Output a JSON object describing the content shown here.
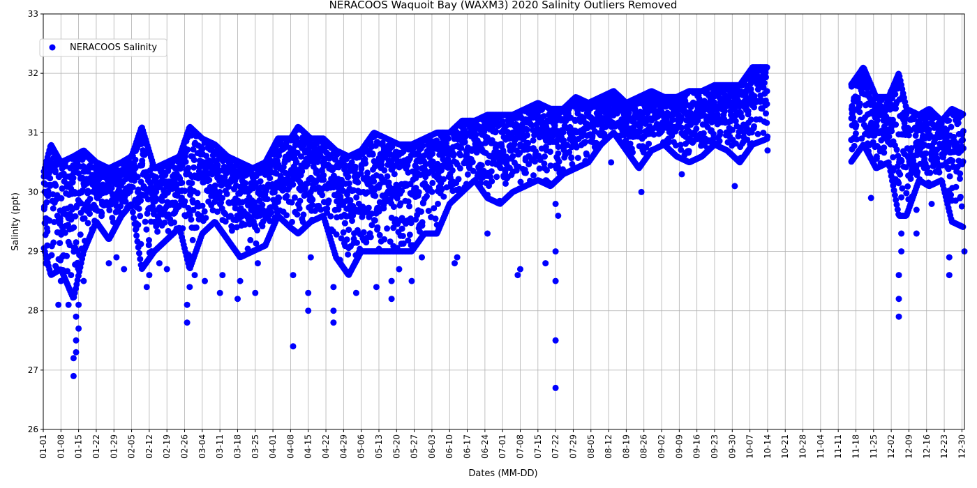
{
  "chart_data": {
    "type": "scatter",
    "title": "NERACOOS Waquoit Bay (WAXM3) 2020 Salinity Outliers Removed",
    "xlabel": "Dates (MM-DD)",
    "ylabel": "Salinity (ppt)",
    "ylim": [
      26,
      33
    ],
    "yticks": [
      "26",
      "27",
      "28",
      "29",
      "30",
      "31",
      "32",
      "33"
    ],
    "xlim": [
      "2020-01-01",
      "2020-12-31"
    ],
    "xticks": [
      "01-01",
      "01-08",
      "01-15",
      "01-22",
      "01-29",
      "02-05",
      "02-12",
      "02-19",
      "02-26",
      "03-04",
      "03-11",
      "03-18",
      "03-25",
      "04-01",
      "04-08",
      "04-15",
      "04-22",
      "04-29",
      "05-06",
      "05-13",
      "05-20",
      "05-27",
      "06-03",
      "06-10",
      "06-17",
      "06-24",
      "07-01",
      "07-08",
      "07-15",
      "07-22",
      "07-29",
      "08-05",
      "08-12",
      "08-19",
      "08-26",
      "09-02",
      "09-09",
      "09-16",
      "09-23",
      "09-30",
      "10-07",
      "10-14",
      "10-21",
      "10-28",
      "11-04",
      "11-11",
      "11-18",
      "11-25",
      "12-02",
      "12-09",
      "12-16",
      "12-23",
      "12-30"
    ],
    "grid": true,
    "legend_placement": "upper-left",
    "series": [
      {
        "name": "NERACOOS Salinity",
        "color": "#0000ff",
        "marker": "circle",
        "segments": [
          {
            "start": "2020-01-01",
            "end": "2020-10-14"
          },
          {
            "start": "2020-11-16",
            "end": "2020-12-31"
          }
        ],
        "envelope": [
          {
            "date": "2020-01-01",
            "low": 29.1,
            "high": 30.3
          },
          {
            "date": "2020-01-04",
            "low": 28.6,
            "high": 30.8
          },
          {
            "date": "2020-01-08",
            "low": 28.7,
            "high": 30.5
          },
          {
            "date": "2020-01-13",
            "low": 28.2,
            "high": 30.6
          },
          {
            "date": "2020-01-17",
            "low": 29.0,
            "high": 30.7
          },
          {
            "date": "2020-01-22",
            "low": 29.5,
            "high": 30.5
          },
          {
            "date": "2020-01-27",
            "low": 29.2,
            "high": 30.4
          },
          {
            "date": "2020-02-01",
            "low": 29.6,
            "high": 30.5
          },
          {
            "date": "2020-02-05",
            "low": 29.8,
            "high": 30.6
          },
          {
            "date": "2020-02-09",
            "low": 28.7,
            "high": 31.1
          },
          {
            "date": "2020-02-14",
            "low": 29.0,
            "high": 30.4
          },
          {
            "date": "2020-02-19",
            "low": 29.2,
            "high": 30.5
          },
          {
            "date": "2020-02-24",
            "low": 29.4,
            "high": 30.6
          },
          {
            "date": "2020-02-28",
            "low": 28.7,
            "high": 31.1
          },
          {
            "date": "2020-03-04",
            "low": 29.3,
            "high": 30.9
          },
          {
            "date": "2020-03-09",
            "low": 29.5,
            "high": 30.8
          },
          {
            "date": "2020-03-14",
            "low": 29.2,
            "high": 30.6
          },
          {
            "date": "2020-03-19",
            "low": 28.9,
            "high": 30.5
          },
          {
            "date": "2020-03-24",
            "low": 29.0,
            "high": 30.4
          },
          {
            "date": "2020-03-29",
            "low": 29.1,
            "high": 30.5
          },
          {
            "date": "2020-04-03",
            "low": 29.6,
            "high": 30.9
          },
          {
            "date": "2020-04-08",
            "low": 29.4,
            "high": 30.9
          },
          {
            "date": "2020-04-11",
            "low": 29.3,
            "high": 31.1
          },
          {
            "date": "2020-04-16",
            "low": 29.5,
            "high": 30.9
          },
          {
            "date": "2020-04-21",
            "low": 29.6,
            "high": 30.9
          },
          {
            "date": "2020-04-26",
            "low": 28.9,
            "high": 30.7
          },
          {
            "date": "2020-05-01",
            "low": 28.6,
            "high": 30.6
          },
          {
            "date": "2020-05-06",
            "low": 29.0,
            "high": 30.7
          },
          {
            "date": "2020-05-11",
            "low": 29.0,
            "high": 31.0
          },
          {
            "date": "2020-05-16",
            "low": 29.0,
            "high": 30.9
          },
          {
            "date": "2020-05-21",
            "low": 29.0,
            "high": 30.8
          },
          {
            "date": "2020-05-26",
            "low": 29.0,
            "high": 30.8
          },
          {
            "date": "2020-05-31",
            "low": 29.3,
            "high": 30.9
          },
          {
            "date": "2020-06-05",
            "low": 29.3,
            "high": 31.0
          },
          {
            "date": "2020-06-10",
            "low": 29.8,
            "high": 31.0
          },
          {
            "date": "2020-06-15",
            "low": 30.0,
            "high": 31.2
          },
          {
            "date": "2020-06-20",
            "low": 30.2,
            "high": 31.2
          },
          {
            "date": "2020-06-25",
            "low": 29.9,
            "high": 31.3
          },
          {
            "date": "2020-06-30",
            "low": 29.8,
            "high": 31.3
          },
          {
            "date": "2020-07-05",
            "low": 30.0,
            "high": 31.3
          },
          {
            "date": "2020-07-10",
            "low": 30.1,
            "high": 31.4
          },
          {
            "date": "2020-07-15",
            "low": 30.2,
            "high": 31.5
          },
          {
            "date": "2020-07-20",
            "low": 30.1,
            "high": 31.4
          },
          {
            "date": "2020-07-25",
            "low": 30.3,
            "high": 31.4
          },
          {
            "date": "2020-07-30",
            "low": 30.4,
            "high": 31.6
          },
          {
            "date": "2020-08-04",
            "low": 30.5,
            "high": 31.5
          },
          {
            "date": "2020-08-09",
            "low": 30.8,
            "high": 31.6
          },
          {
            "date": "2020-08-14",
            "low": 31.0,
            "high": 31.7
          },
          {
            "date": "2020-08-19",
            "low": 30.7,
            "high": 31.5
          },
          {
            "date": "2020-08-24",
            "low": 30.4,
            "high": 31.6
          },
          {
            "date": "2020-08-29",
            "low": 30.7,
            "high": 31.7
          },
          {
            "date": "2020-09-03",
            "low": 30.8,
            "high": 31.6
          },
          {
            "date": "2020-09-08",
            "low": 30.6,
            "high": 31.6
          },
          {
            "date": "2020-09-13",
            "low": 30.5,
            "high": 31.7
          },
          {
            "date": "2020-09-18",
            "low": 30.6,
            "high": 31.7
          },
          {
            "date": "2020-09-23",
            "low": 30.8,
            "high": 31.8
          },
          {
            "date": "2020-09-28",
            "low": 30.7,
            "high": 31.8
          },
          {
            "date": "2020-10-03",
            "low": 30.5,
            "high": 31.8
          },
          {
            "date": "2020-10-08",
            "low": 30.8,
            "high": 32.1
          },
          {
            "date": "2020-10-14",
            "low": 30.9,
            "high": 32.1
          },
          {
            "date": "2020-11-16",
            "low": 30.5,
            "high": 31.8
          },
          {
            "date": "2020-11-21",
            "low": 30.8,
            "high": 32.1
          },
          {
            "date": "2020-11-26",
            "low": 30.4,
            "high": 31.6
          },
          {
            "date": "2020-12-01",
            "low": 30.5,
            "high": 31.6
          },
          {
            "date": "2020-12-05",
            "low": 29.6,
            "high": 32.0
          },
          {
            "date": "2020-12-08",
            "low": 29.6,
            "high": 31.4
          },
          {
            "date": "2020-12-13",
            "low": 30.2,
            "high": 31.3
          },
          {
            "date": "2020-12-17",
            "low": 30.1,
            "high": 31.4
          },
          {
            "date": "2020-12-22",
            "low": 30.2,
            "high": 31.2
          },
          {
            "date": "2020-12-26",
            "low": 29.5,
            "high": 31.4
          },
          {
            "date": "2020-12-31",
            "low": 29.4,
            "high": 31.3
          }
        ],
        "outliers": [
          {
            "date": "2020-01-02",
            "value": 28.8
          },
          {
            "date": "2020-01-03",
            "value": 28.9
          },
          {
            "date": "2020-01-07",
            "value": 28.1
          },
          {
            "date": "2020-01-08",
            "value": 28.5
          },
          {
            "date": "2020-01-11",
            "value": 28.1
          },
          {
            "date": "2020-01-12",
            "value": 28.6
          },
          {
            "date": "2020-01-13",
            "value": 26.9
          },
          {
            "date": "2020-01-13",
            "value": 27.2
          },
          {
            "date": "2020-01-14",
            "value": 27.3
          },
          {
            "date": "2020-01-14",
            "value": 27.9
          },
          {
            "date": "2020-01-14",
            "value": 27.5
          },
          {
            "date": "2020-01-15",
            "value": 27.7
          },
          {
            "date": "2020-01-15",
            "value": 28.1
          },
          {
            "date": "2020-01-17",
            "value": 28.5
          },
          {
            "date": "2020-01-27",
            "value": 28.8
          },
          {
            "date": "2020-01-30",
            "value": 28.9
          },
          {
            "date": "2020-02-02",
            "value": 28.7
          },
          {
            "date": "2020-02-11",
            "value": 28.4
          },
          {
            "date": "2020-02-12",
            "value": 28.6
          },
          {
            "date": "2020-02-16",
            "value": 28.8
          },
          {
            "date": "2020-02-19",
            "value": 28.7
          },
          {
            "date": "2020-02-27",
            "value": 27.8
          },
          {
            "date": "2020-02-27",
            "value": 28.1
          },
          {
            "date": "2020-02-28",
            "value": 28.4
          },
          {
            "date": "2020-03-01",
            "value": 28.6
          },
          {
            "date": "2020-03-05",
            "value": 28.5
          },
          {
            "date": "2020-03-11",
            "value": 28.3
          },
          {
            "date": "2020-03-12",
            "value": 28.6
          },
          {
            "date": "2020-03-18",
            "value": 28.2
          },
          {
            "date": "2020-03-19",
            "value": 28.5
          },
          {
            "date": "2020-03-25",
            "value": 28.3
          },
          {
            "date": "2020-03-26",
            "value": 28.8
          },
          {
            "date": "2020-04-09",
            "value": 27.4
          },
          {
            "date": "2020-04-09",
            "value": 28.6
          },
          {
            "date": "2020-04-15",
            "value": 28.0
          },
          {
            "date": "2020-04-15",
            "value": 28.3
          },
          {
            "date": "2020-04-16",
            "value": 28.9
          },
          {
            "date": "2020-04-25",
            "value": 27.8
          },
          {
            "date": "2020-04-25",
            "value": 28.0
          },
          {
            "date": "2020-04-25",
            "value": 28.4
          },
          {
            "date": "2020-05-04",
            "value": 28.3
          },
          {
            "date": "2020-05-12",
            "value": 28.4
          },
          {
            "date": "2020-05-18",
            "value": 28.2
          },
          {
            "date": "2020-05-18",
            "value": 28.5
          },
          {
            "date": "2020-05-21",
            "value": 28.7
          },
          {
            "date": "2020-05-26",
            "value": 28.5
          },
          {
            "date": "2020-05-30",
            "value": 28.9
          },
          {
            "date": "2020-06-12",
            "value": 28.8
          },
          {
            "date": "2020-06-13",
            "value": 28.9
          },
          {
            "date": "2020-06-25",
            "value": 29.3
          },
          {
            "date": "2020-07-07",
            "value": 28.6
          },
          {
            "date": "2020-07-08",
            "value": 28.7
          },
          {
            "date": "2020-07-18",
            "value": 28.8
          },
          {
            "date": "2020-07-22",
            "value": 26.7
          },
          {
            "date": "2020-07-22",
            "value": 27.5
          },
          {
            "date": "2020-07-22",
            "value": 28.5
          },
          {
            "date": "2020-07-22",
            "value": 29.0
          },
          {
            "date": "2020-07-22",
            "value": 29.8
          },
          {
            "date": "2020-07-23",
            "value": 29.6
          },
          {
            "date": "2020-08-13",
            "value": 30.5
          },
          {
            "date": "2020-08-25",
            "value": 30.0
          },
          {
            "date": "2020-09-10",
            "value": 30.3
          },
          {
            "date": "2020-10-01",
            "value": 30.1
          },
          {
            "date": "2020-10-14",
            "value": 30.7
          },
          {
            "date": "2020-11-24",
            "value": 29.9
          },
          {
            "date": "2020-12-05",
            "value": 27.9
          },
          {
            "date": "2020-12-05",
            "value": 28.2
          },
          {
            "date": "2020-12-05",
            "value": 28.6
          },
          {
            "date": "2020-12-06",
            "value": 29.0
          },
          {
            "date": "2020-12-06",
            "value": 29.3
          },
          {
            "date": "2020-12-12",
            "value": 29.3
          },
          {
            "date": "2020-12-12",
            "value": 29.7
          },
          {
            "date": "2020-12-18",
            "value": 29.8
          },
          {
            "date": "2020-12-25",
            "value": 28.6
          },
          {
            "date": "2020-12-25",
            "value": 28.9
          },
          {
            "date": "2020-12-31",
            "value": 29.0
          }
        ]
      }
    ]
  }
}
